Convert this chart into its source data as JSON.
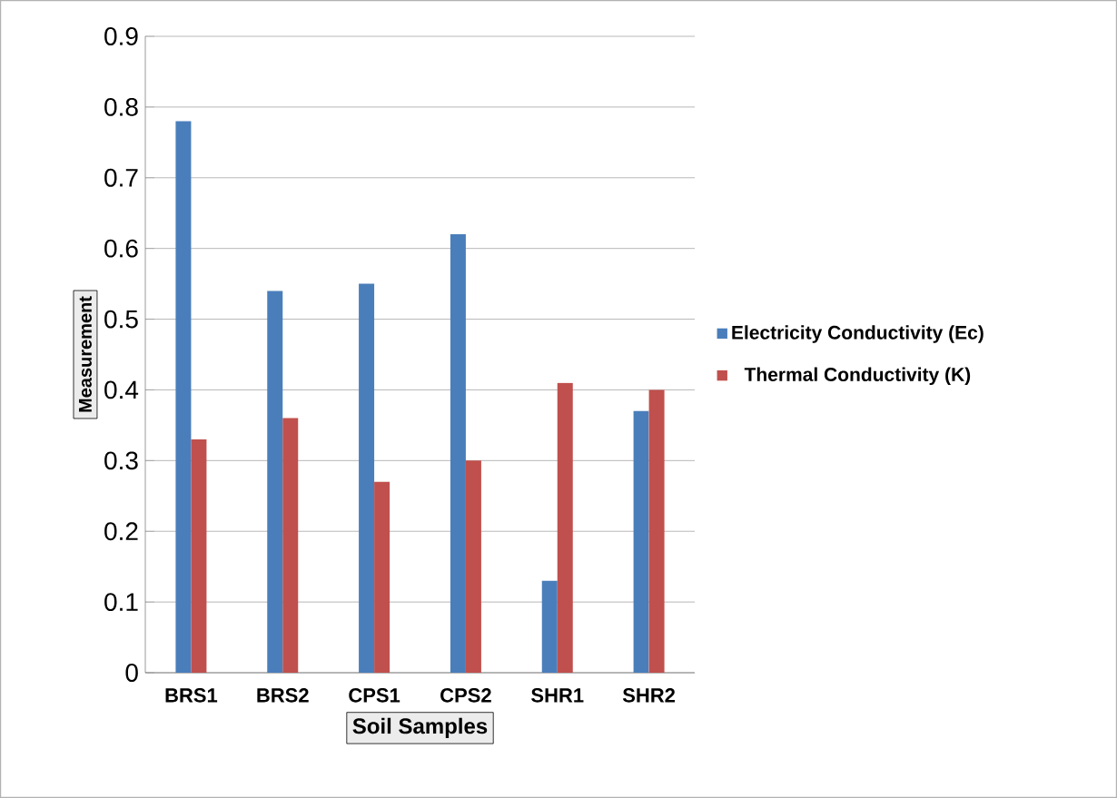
{
  "chart_data": {
    "type": "bar",
    "xlabel": "Soil Samples",
    "ylabel": "Measurement",
    "categories": [
      "BRS1",
      "BRS2",
      "CPS1",
      "CPS2",
      "SHR1",
      "SHR2"
    ],
    "series": [
      {
        "name": "Electricity Conductivity (Ec)",
        "color": "#4a7ebb",
        "values": [
          0.78,
          0.54,
          0.55,
          0.62,
          0.13,
          0.37
        ]
      },
      {
        "name": "Thermal Conductivity (K)",
        "color": "#c0504d",
        "values": [
          0.33,
          0.36,
          0.27,
          0.3,
          0.41,
          0.4
        ]
      }
    ],
    "ylim": [
      0,
      0.9
    ],
    "yticks": [
      0,
      0.1,
      0.2,
      0.3,
      0.4,
      0.5,
      0.6,
      0.7,
      0.8,
      0.9
    ],
    "grid": "y",
    "legend": "right"
  }
}
